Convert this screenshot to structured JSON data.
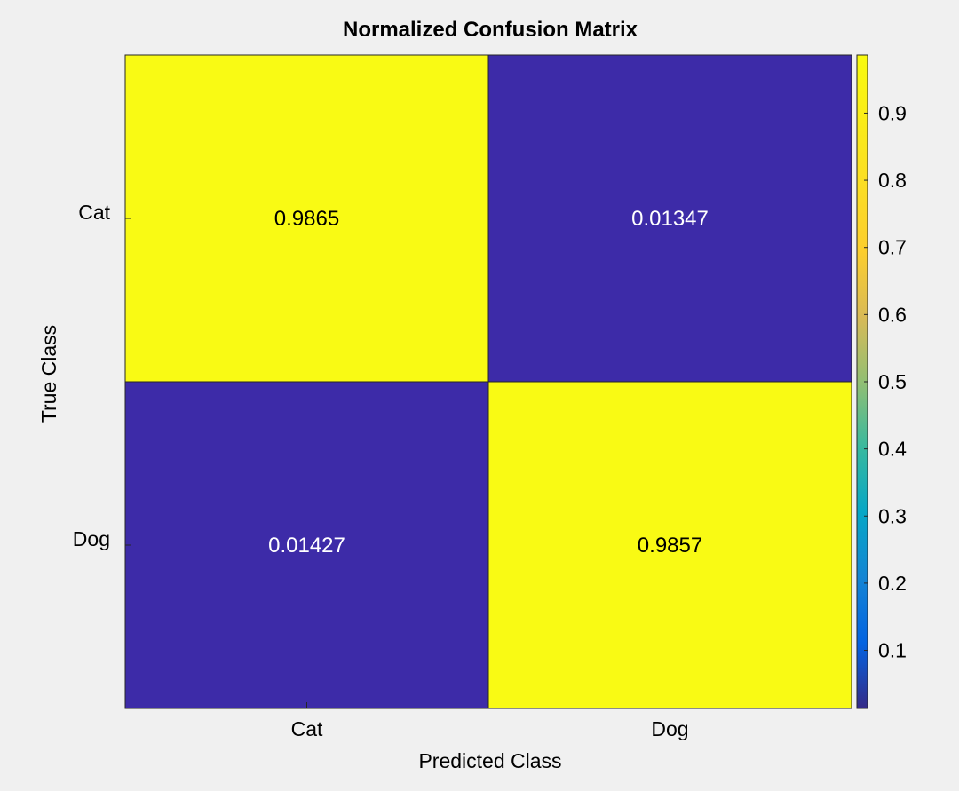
{
  "chart_data": {
    "type": "heatmap",
    "title": "Normalized Confusion Matrix",
    "xlabel": "Predicted Class",
    "ylabel": "True Class",
    "x_categories": [
      "Cat",
      "Dog"
    ],
    "y_categories": [
      "Cat",
      "Dog"
    ],
    "values": [
      [
        0.9865,
        0.01347
      ],
      [
        0.01427,
        0.9857
      ]
    ],
    "value_labels": [
      [
        "0.9865",
        "0.01347"
      ],
      [
        "0.01427",
        "0.9857"
      ]
    ],
    "colormap": "parula",
    "colorbar": {
      "range": [
        0.01347,
        0.9865
      ],
      "ticks": [
        0.1,
        0.2,
        0.3,
        0.4,
        0.5,
        0.6,
        0.7,
        0.8,
        0.9
      ],
      "tick_labels": [
        "0.1",
        "0.2",
        "0.3",
        "0.4",
        "0.5",
        "0.6",
        "0.7",
        "0.8",
        "0.9"
      ]
    },
    "colors": {
      "low": "#3d2ba8",
      "high": "#f9fa14",
      "background": "#f0f0f0"
    }
  }
}
